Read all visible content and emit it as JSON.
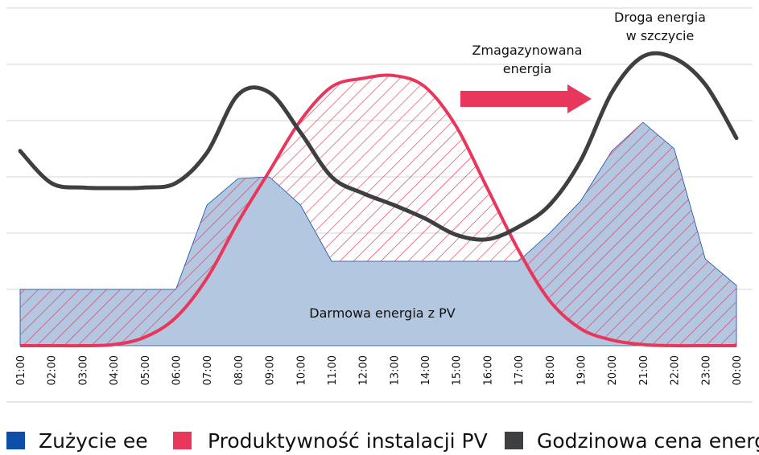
{
  "chart_data": {
    "type": "area-line",
    "categories": [
      "01:00",
      "02:00",
      "03:00",
      "04:00",
      "05:00",
      "06:00",
      "07:00",
      "08:00",
      "09:00",
      "10:00",
      "11:00",
      "12:00",
      "13:00",
      "14:00",
      "15:00",
      "16:00",
      "17:00",
      "18:00",
      "19:00",
      "20:00",
      "21:00",
      "22:00",
      "23:00",
      "00:00"
    ],
    "ylim": [
      0,
      6
    ],
    "gridlines": [
      1,
      2,
      3,
      4,
      5,
      6
    ],
    "series": [
      {
        "name": "Zużycie ee",
        "color": "#0d4fa8",
        "fill": "#b3c7e0",
        "values": [
          1.0,
          1.0,
          1.0,
          1.0,
          1.0,
          1.0,
          2.5,
          2.97,
          3.0,
          2.5,
          1.5,
          1.5,
          1.5,
          1.5,
          1.5,
          1.5,
          1.5,
          2.0,
          2.57,
          3.46,
          3.97,
          3.5,
          1.54,
          1.07
        ]
      },
      {
        "name": "Produktywność instalacji PV",
        "color": "#e8375a",
        "values": [
          0,
          0,
          0,
          0.02,
          0.15,
          0.5,
          1.2,
          2.2,
          3.1,
          4.0,
          4.6,
          4.75,
          4.8,
          4.6,
          3.9,
          2.8,
          1.7,
          0.8,
          0.3,
          0.1,
          0.02,
          0,
          0,
          0
        ]
      },
      {
        "name": "Godzinowa cena energii",
        "color": "#3d3f41",
        "values": [
          3.46,
          2.89,
          2.81,
          2.8,
          2.81,
          2.89,
          3.43,
          4.46,
          4.5,
          3.79,
          3.0,
          2.71,
          2.5,
          2.26,
          1.97,
          1.89,
          2.11,
          2.5,
          3.29,
          4.5,
          5.14,
          5.11,
          4.64,
          3.69
        ]
      }
    ],
    "annotations": [
      {
        "lines": [
          "Darmowa energia z PV"
        ]
      },
      {
        "lines": [
          "Zmagazynowana",
          "energia"
        ]
      },
      {
        "lines": [
          "Droga energia",
          "w szczycie"
        ]
      }
    ]
  }
}
